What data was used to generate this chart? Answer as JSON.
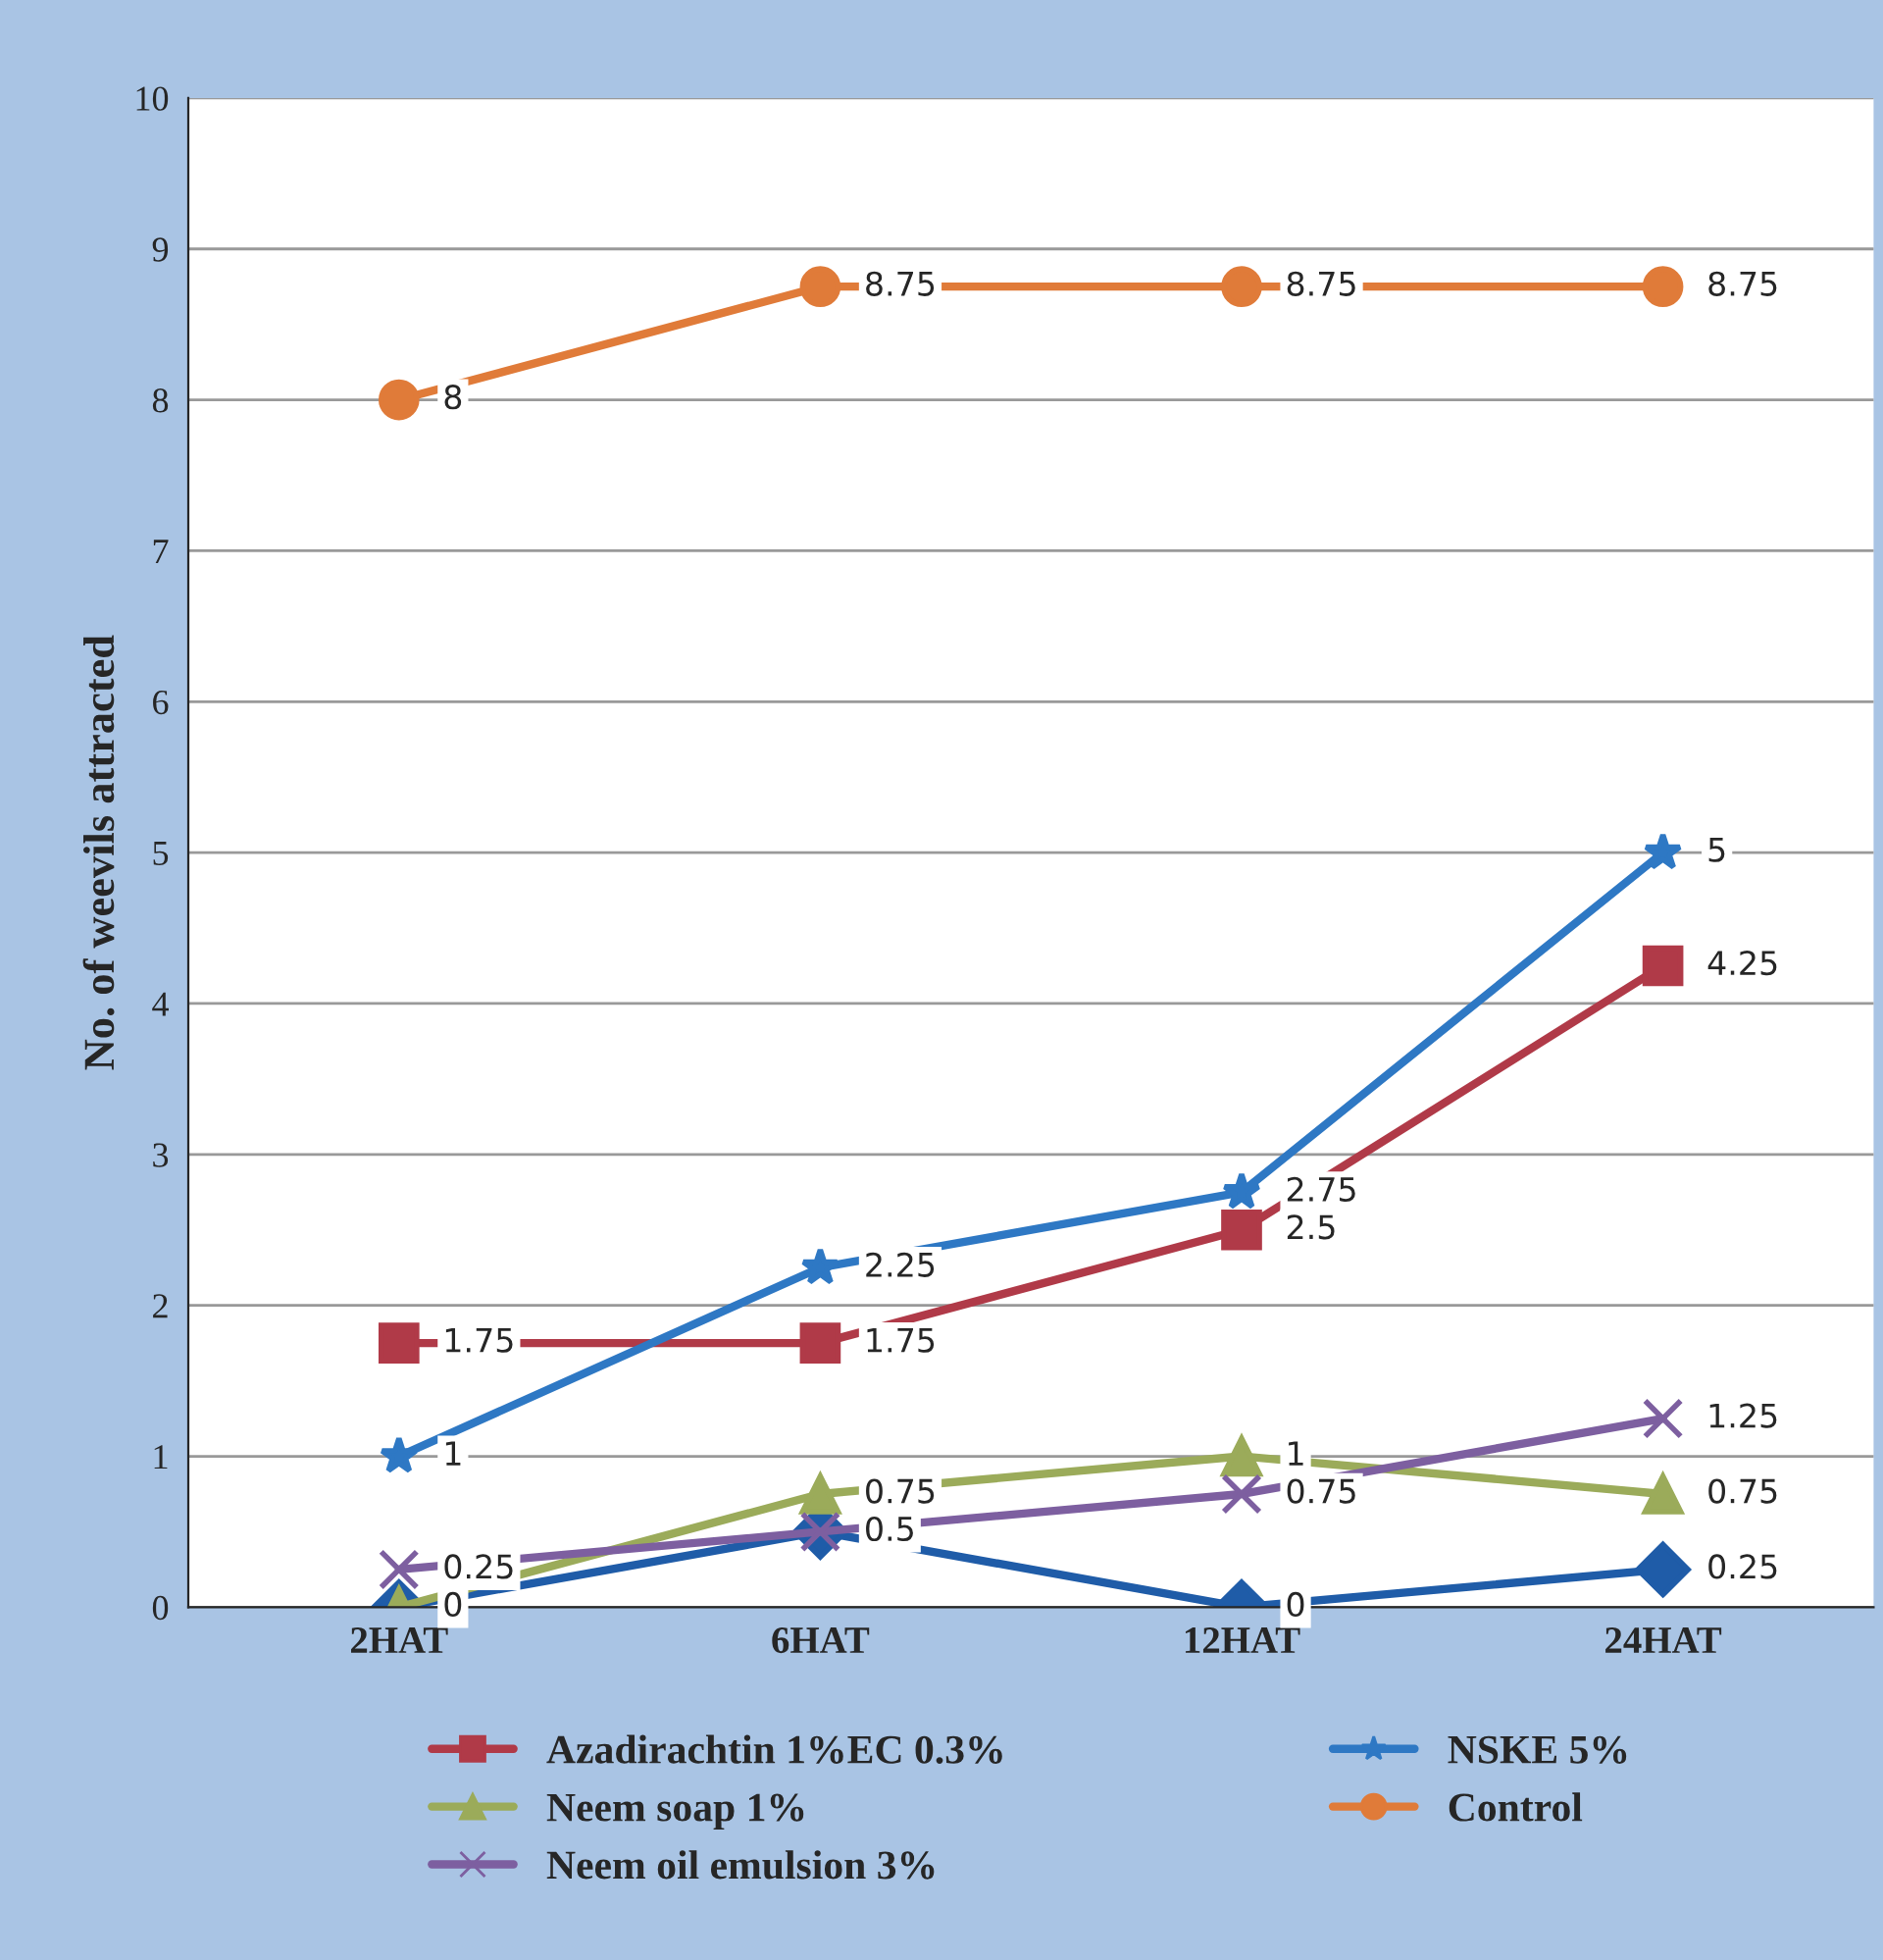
{
  "chart_data": {
    "type": "line",
    "ylabel": "No. of weevils attracted",
    "categories": [
      "2HAT",
      "6HAT",
      "12HAT",
      "24HAT"
    ],
    "ylim": [
      0,
      10
    ],
    "yticks": [
      0,
      1,
      2,
      3,
      4,
      5,
      6,
      7,
      8,
      9,
      10
    ],
    "grid": "y",
    "legend": "bottom",
    "series": [
      {
        "color": "#1f5ca8",
        "marker": "diamond",
        "values": [
          0,
          0.5,
          0,
          0.25
        ],
        "value_labels": [
          "0",
          "0.5",
          "0",
          "0.25"
        ]
      },
      {
        "name": "Azadirachtin 1%EC 0.3%",
        "color": "#b03a48",
        "marker": "square",
        "values": [
          1.75,
          1.75,
          2.5,
          4.25
        ],
        "value_labels": [
          "1.75",
          "1.75",
          "2.5",
          "4.25"
        ]
      },
      {
        "name": "Neem soap 1%",
        "color": "#9bab5a",
        "marker": "triangle",
        "values": [
          0,
          0.75,
          1,
          0.75
        ],
        "value_labels": [
          null,
          "0.75",
          "1",
          "0.75"
        ]
      },
      {
        "name": "Neem oil emulsion 3%",
        "color": "#7d5fa0",
        "marker": "cross",
        "values": [
          0.25,
          0.5,
          0.75,
          1.25
        ],
        "value_labels": [
          "0.25",
          null,
          "0.75",
          "1.25"
        ]
      },
      {
        "name": "NSKE 5%",
        "color": "#2e78c4",
        "marker": "star",
        "values": [
          1,
          2.25,
          2.75,
          5
        ],
        "value_labels": [
          "1",
          "2.25",
          "2.75",
          "5"
        ]
      },
      {
        "name": "Control",
        "color": "#e07b39",
        "marker": "circle",
        "values": [
          8,
          8.75,
          8.75,
          8.75
        ],
        "value_labels": [
          "8",
          "8.75",
          "8.75",
          "8.75"
        ]
      }
    ]
  }
}
